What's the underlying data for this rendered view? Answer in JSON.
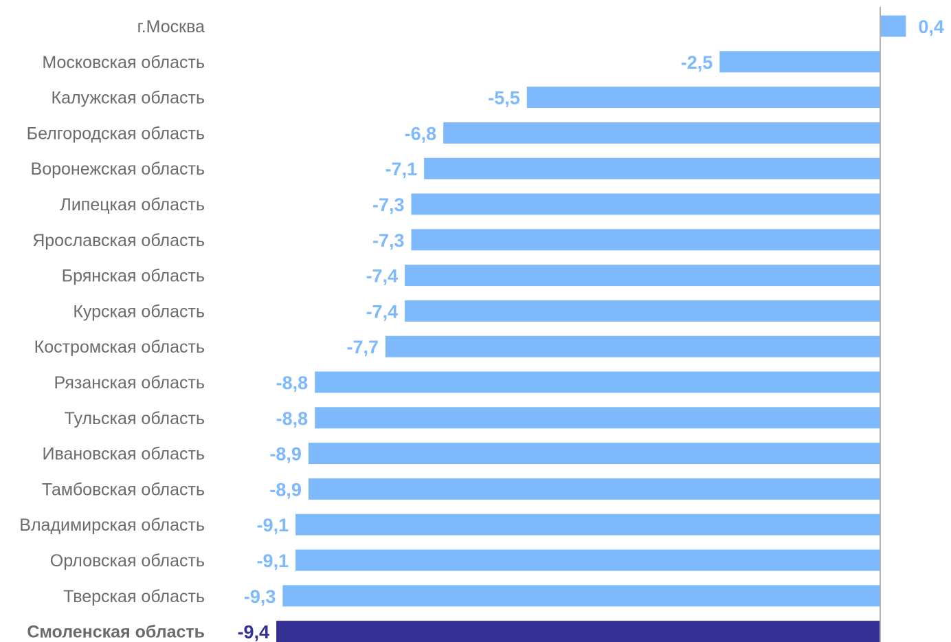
{
  "chart_data": {
    "type": "bar",
    "orientation": "horizontal",
    "categories": [
      "г.Москва",
      "Московская область",
      "Калужская область",
      "Белгородская область",
      "Воронежская область",
      "Липецкая область",
      "Ярославская область",
      "Брянская область",
      "Курская область",
      "Костромская область",
      "Рязанская область",
      "Тульская область",
      "Ивановская область",
      "Тамбовская область",
      "Владимирская область",
      "Орловская область",
      "Тверская область",
      "Смоленская область"
    ],
    "values": [
      0.4,
      -2.5,
      -5.5,
      -6.8,
      -7.1,
      -7.3,
      -7.3,
      -7.4,
      -7.4,
      -7.7,
      -8.8,
      -8.8,
      -8.9,
      -8.9,
      -9.1,
      -9.1,
      -9.3,
      -9.4
    ],
    "value_labels": [
      "0,4",
      "-2,5",
      "-5,5",
      "-6,8",
      "-7,1",
      "-7,3",
      "-7,3",
      "-7,4",
      "-7,4",
      "-7,7",
      "-8,8",
      "-8,8",
      "-8,9",
      "-8,9",
      "-9,1",
      "-9,1",
      "-9,3",
      "-9,4"
    ],
    "highlight_category": "Смоленская область",
    "xlim": [
      -9.4,
      0.4
    ],
    "grid": false,
    "legend": "none",
    "title": "",
    "xlabel": "",
    "ylabel": ""
  },
  "colors": {
    "bar": "#7db9fb",
    "bar_highlight": "#343094",
    "label_default": "#7db9fb",
    "label_highlight": "#343094",
    "category_text": "#6b6b6b",
    "axis": "#b0b0b0"
  }
}
